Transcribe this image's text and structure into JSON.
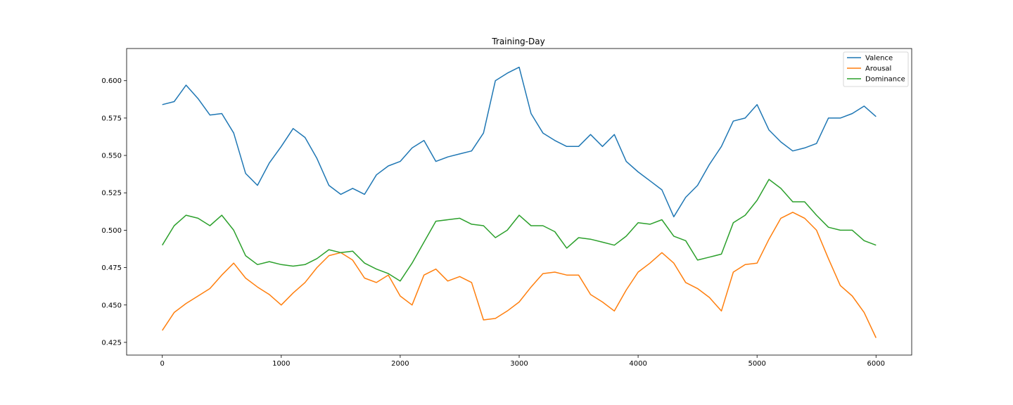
{
  "chart_data": {
    "type": "line",
    "title": "Training-Day",
    "xlabel": "",
    "ylabel": "",
    "xlim": [
      -300,
      6300
    ],
    "ylim": [
      0.4165,
      0.6215
    ],
    "xticks": [
      0,
      1000,
      2000,
      3000,
      4000,
      5000,
      6000
    ],
    "yticks": [
      0.425,
      0.45,
      0.475,
      0.5,
      0.525,
      0.55,
      0.575,
      0.6
    ],
    "xtick_labels": [
      "0",
      "1000",
      "2000",
      "3000",
      "4000",
      "5000",
      "6000"
    ],
    "ytick_labels": [
      "0.425",
      "0.450",
      "0.475",
      "0.500",
      "0.525",
      "0.550",
      "0.575",
      "0.600"
    ],
    "grid": false,
    "legend_position": "top-right",
    "series": [
      {
        "name": "Valence",
        "color": "#1f77b4",
        "x": [
          0,
          100,
          200,
          300,
          400,
          500,
          600,
          700,
          800,
          900,
          1000,
          1100,
          1200,
          1300,
          1400,
          1500,
          1600,
          1700,
          1800,
          1900,
          2000,
          2100,
          2200,
          2300,
          2400,
          2500,
          2600,
          2700,
          2800,
          2900,
          3000,
          3100,
          3200,
          3300,
          3400,
          3500,
          3600,
          3700,
          3800,
          3900,
          4000,
          4100,
          4200,
          4300,
          4400,
          4500,
          4600,
          4700,
          4800,
          4900,
          5000,
          5100,
          5200,
          5300,
          5400,
          5500,
          5600,
          5700,
          5800,
          5900,
          6000
        ],
        "values": [
          0.584,
          0.586,
          0.597,
          0.588,
          0.577,
          0.578,
          0.565,
          0.538,
          0.53,
          0.545,
          0.556,
          0.568,
          0.562,
          0.548,
          0.53,
          0.524,
          0.528,
          0.524,
          0.537,
          0.543,
          0.546,
          0.555,
          0.56,
          0.546,
          0.549,
          0.551,
          0.553,
          0.565,
          0.6,
          0.605,
          0.609,
          0.578,
          0.565,
          0.56,
          0.556,
          0.556,
          0.564,
          0.556,
          0.564,
          0.546,
          0.539,
          0.533,
          0.527,
          0.509,
          0.522,
          0.53,
          0.544,
          0.556,
          0.573,
          0.575,
          0.584,
          0.567,
          0.559,
          0.553,
          0.555,
          0.558,
          0.575,
          0.575,
          0.578,
          0.583,
          0.576
        ]
      },
      {
        "name": "Arousal",
        "color": "#ff7f0e",
        "x": [
          0,
          100,
          200,
          300,
          400,
          500,
          600,
          700,
          800,
          900,
          1000,
          1100,
          1200,
          1300,
          1400,
          1500,
          1600,
          1700,
          1800,
          1900,
          2000,
          2100,
          2200,
          2300,
          2400,
          2500,
          2600,
          2700,
          2800,
          2900,
          3000,
          3100,
          3200,
          3300,
          3400,
          3500,
          3600,
          3700,
          3800,
          3900,
          4000,
          4100,
          4200,
          4300,
          4400,
          4500,
          4600,
          4700,
          4800,
          4900,
          5000,
          5100,
          5200,
          5300,
          5400,
          5500,
          5600,
          5700,
          5800,
          5900,
          6000
        ],
        "values": [
          0.433,
          0.445,
          0.451,
          0.456,
          0.461,
          0.47,
          0.478,
          0.468,
          0.462,
          0.457,
          0.45,
          0.458,
          0.465,
          0.475,
          0.483,
          0.485,
          0.48,
          0.468,
          0.465,
          0.47,
          0.456,
          0.45,
          0.47,
          0.474,
          0.466,
          0.469,
          0.465,
          0.44,
          0.441,
          0.446,
          0.452,
          0.462,
          0.471,
          0.472,
          0.47,
          0.47,
          0.457,
          0.452,
          0.446,
          0.46,
          0.472,
          0.478,
          0.485,
          0.478,
          0.465,
          0.461,
          0.455,
          0.446,
          0.472,
          0.477,
          0.478,
          0.494,
          0.508,
          0.512,
          0.508,
          0.5,
          0.481,
          0.463,
          0.456,
          0.445,
          0.428
        ]
      },
      {
        "name": "Dominance",
        "color": "#2ca02c",
        "x": [
          0,
          100,
          200,
          300,
          400,
          500,
          600,
          700,
          800,
          900,
          1000,
          1100,
          1200,
          1300,
          1400,
          1500,
          1600,
          1700,
          1800,
          1900,
          2000,
          2100,
          2200,
          2300,
          2400,
          2500,
          2600,
          2700,
          2800,
          2900,
          3000,
          3100,
          3200,
          3300,
          3400,
          3500,
          3600,
          3700,
          3800,
          3900,
          4000,
          4100,
          4200,
          4300,
          4400,
          4500,
          4600,
          4700,
          4800,
          4900,
          5000,
          5100,
          5200,
          5300,
          5400,
          5500,
          5600,
          5700,
          5800,
          5900,
          6000
        ],
        "values": [
          0.49,
          0.503,
          0.51,
          0.508,
          0.503,
          0.51,
          0.5,
          0.483,
          0.477,
          0.479,
          0.477,
          0.476,
          0.477,
          0.481,
          0.487,
          0.485,
          0.486,
          0.478,
          0.474,
          0.471,
          0.466,
          0.478,
          0.492,
          0.506,
          0.507,
          0.508,
          0.504,
          0.503,
          0.495,
          0.5,
          0.51,
          0.503,
          0.503,
          0.499,
          0.488,
          0.495,
          0.494,
          0.492,
          0.49,
          0.496,
          0.505,
          0.504,
          0.507,
          0.496,
          0.493,
          0.48,
          0.482,
          0.484,
          0.505,
          0.51,
          0.52,
          0.534,
          0.528,
          0.519,
          0.519,
          0.51,
          0.502,
          0.5,
          0.5,
          0.493,
          0.49
        ]
      }
    ]
  }
}
